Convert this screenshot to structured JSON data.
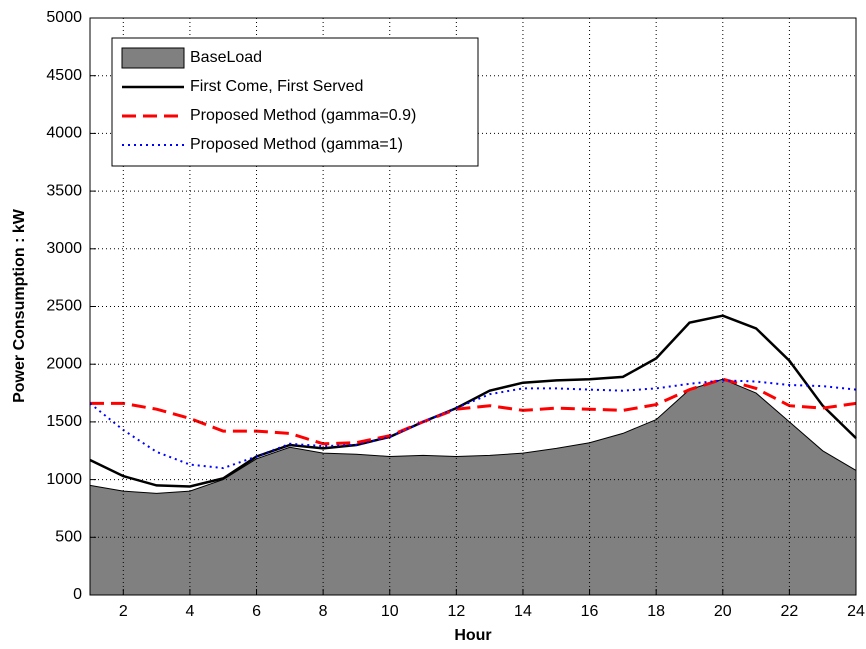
{
  "chart_data": {
    "type": "line",
    "xlabel": "Hour",
    "ylabel": "Power Consumption : kW",
    "x": [
      1,
      2,
      3,
      4,
      5,
      6,
      7,
      8,
      9,
      10,
      11,
      12,
      13,
      14,
      15,
      16,
      17,
      18,
      19,
      20,
      21,
      22,
      23,
      24
    ],
    "xlim": [
      1,
      24
    ],
    "xticks": [
      2,
      4,
      6,
      8,
      10,
      12,
      14,
      16,
      18,
      20,
      22,
      24
    ],
    "ylim": [
      0,
      5000
    ],
    "yticks": [
      0,
      500,
      1000,
      1500,
      2000,
      2500,
      3000,
      3500,
      4000,
      4500,
      5000
    ],
    "grid": true,
    "legend": "upper-left",
    "series": [
      {
        "name": "BaseLoad",
        "color": "#808080",
        "style": "area",
        "values": [
          950,
          900,
          880,
          900,
          1000,
          1180,
          1280,
          1230,
          1220,
          1200,
          1210,
          1200,
          1210,
          1230,
          1270,
          1320,
          1400,
          1520,
          1780,
          1870,
          1750,
          1500,
          1250,
          1080
        ]
      },
      {
        "name": "First Come, First Served",
        "color": "#000000",
        "style": "solid",
        "values": [
          1170,
          1030,
          950,
          940,
          1010,
          1200,
          1300,
          1270,
          1300,
          1370,
          1500,
          1620,
          1770,
          1840,
          1860,
          1870,
          1890,
          2050,
          2360,
          2420,
          2310,
          2030,
          1640,
          1360
        ]
      },
      {
        "name": "Proposed Method (gamma=0.9)",
        "color": "#ff0000",
        "style": "dashed",
        "values": [
          1660,
          1660,
          1610,
          1530,
          1420,
          1420,
          1400,
          1310,
          1320,
          1380,
          1500,
          1610,
          1640,
          1600,
          1620,
          1610,
          1600,
          1650,
          1780,
          1870,
          1790,
          1640,
          1620,
          1660
        ]
      },
      {
        "name": "Proposed Method (gamma=1)",
        "color": "#0000ff",
        "style": "dotted",
        "values": [
          1660,
          1430,
          1240,
          1130,
          1100,
          1200,
          1310,
          1290,
          1300,
          1370,
          1500,
          1620,
          1740,
          1790,
          1790,
          1780,
          1770,
          1790,
          1830,
          1860,
          1850,
          1820,
          1810,
          1780
        ]
      }
    ]
  }
}
